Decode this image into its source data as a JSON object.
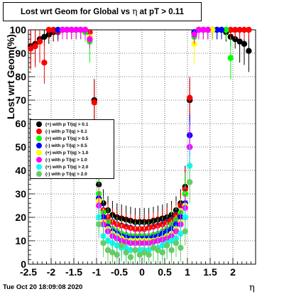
{
  "title": {
    "prefix": "Lost wrt Geom for Global vs",
    "eta": "η",
    "suffix": " at pT > 0.11"
  },
  "date_stamp": "Tue Oct 20 18:09:08 2020",
  "chart_data": {
    "type": "scatter",
    "xlabel": "η",
    "ylabel": "Lost wrt Geom(%)",
    "xlim": [
      -2.5,
      2.5
    ],
    "ylim": [
      0,
      100
    ],
    "x_ticks": [
      "-2.5",
      "-2",
      "-1.5",
      "-1",
      "-0.5",
      "0",
      "0.5",
      "1",
      "1.5",
      "2"
    ],
    "y_ticks": [
      "0",
      "10",
      "20",
      "30",
      "40",
      "50",
      "60",
      "70",
      "80",
      "90",
      "100"
    ],
    "grid": true,
    "legend_position": "middle-left",
    "series": [
      {
        "name": "(+) with p T/|q| > 0.1",
        "color": "#000000",
        "x": [
          -2.45,
          -2.35,
          -2.25,
          -2.15,
          -2.05,
          -1.95,
          -1.85,
          -1.75,
          -1.65,
          -1.55,
          -1.45,
          -1.35,
          -1.25,
          -1.15,
          -1.05,
          -0.95,
          -0.85,
          -0.75,
          -0.65,
          -0.55,
          -0.45,
          -0.35,
          -0.25,
          -0.15,
          -0.05,
          0.05,
          0.15,
          0.25,
          0.35,
          0.45,
          0.55,
          0.65,
          0.75,
          0.85,
          0.95,
          1.05,
          1.15,
          1.25,
          1.35,
          1.45,
          1.55,
          1.65,
          1.75,
          1.85,
          1.95,
          2.05,
          2.15,
          2.25,
          2.35
        ],
        "y": [
          93,
          94,
          96,
          97,
          98,
          99,
          99.5,
          100,
          100,
          100,
          100,
          100,
          100,
          99,
          70,
          34,
          26,
          23,
          21,
          20,
          19.5,
          19,
          18.5,
          18,
          18,
          18,
          18,
          18.5,
          19,
          19.5,
          20,
          21,
          23,
          26,
          33,
          70,
          99,
          100,
          100,
          100,
          100,
          100,
          100,
          99,
          97,
          96,
          95,
          94,
          91
        ]
      },
      {
        "name": "(-) with p T/|q| > 0.1",
        "color": "#ff0000",
        "x": [
          -2.45,
          -2.35,
          -2.25,
          -2.15,
          -2.05,
          -1.95,
          -1.85,
          -1.75,
          -1.65,
          -1.55,
          -1.45,
          -1.35,
          -1.25,
          -1.15,
          -1.05,
          -0.95,
          -0.85,
          -0.75,
          -0.65,
          -0.55,
          -0.45,
          -0.35,
          -0.25,
          -0.15,
          -0.05,
          0.05,
          0.15,
          0.25,
          0.35,
          0.45,
          0.55,
          0.65,
          0.75,
          0.85,
          0.95,
          1.05,
          1.15,
          1.25,
          1.35,
          1.45,
          1.55,
          1.65,
          1.75,
          1.85,
          1.95,
          2.05,
          2.15,
          2.25,
          2.35
        ],
        "y": [
          92,
          93,
          95,
          86,
          100,
          100,
          99,
          100,
          100,
          100,
          100,
          100,
          100,
          99,
          69,
          28,
          23,
          20,
          18,
          17,
          16.5,
          16,
          15.5,
          15,
          15,
          15,
          15.5,
          16,
          16.5,
          17,
          18,
          19,
          21,
          25,
          32,
          71,
          99,
          100,
          100,
          100,
          100,
          100,
          100,
          100,
          100,
          100,
          100,
          100,
          100
        ]
      },
      {
        "name": "(+) with p T/|q| > 0.5",
        "color": "#00ff00",
        "x": [
          -1.85,
          -1.75,
          -1.65,
          -1.55,
          -1.45,
          -1.35,
          -1.25,
          -1.15,
          -0.95,
          -0.85,
          -0.75,
          -0.65,
          -0.55,
          -0.45,
          -0.35,
          -0.25,
          -0.15,
          -0.05,
          0.05,
          0.15,
          0.25,
          0.35,
          0.45,
          0.55,
          0.65,
          0.75,
          0.85,
          0.95,
          1.15,
          1.25,
          1.35,
          1.45,
          1.55,
          1.65,
          1.75,
          1.85,
          1.95
        ],
        "y": [
          100,
          100,
          100,
          100,
          100,
          100,
          99,
          95,
          30,
          22,
          18,
          15,
          14,
          13,
          12.5,
          12,
          12,
          12,
          12,
          12,
          12.5,
          13,
          14,
          15,
          17,
          19,
          22,
          30,
          97,
          100,
          100,
          100,
          100,
          100,
          100,
          100,
          88
        ]
      },
      {
        "name": "(-) with p T/|q| > 0.5",
        "color": "#0000ff",
        "x": [
          -1.85,
          -1.75,
          -1.65,
          -1.55,
          -1.45,
          -1.35,
          -1.25,
          -1.15,
          -0.95,
          -0.85,
          -0.75,
          -0.65,
          -0.55,
          -0.45,
          -0.35,
          -0.25,
          -0.15,
          -0.05,
          0.05,
          0.15,
          0.25,
          0.35,
          0.45,
          0.55,
          0.65,
          0.75,
          0.85,
          0.95,
          1.05,
          1.15,
          1.25,
          1.35,
          1.45,
          1.55,
          1.65,
          1.75
        ],
        "y": [
          100,
          100,
          100,
          100,
          100,
          100,
          100,
          97,
          28,
          20,
          16,
          14,
          13,
          12,
          11.5,
          11,
          11,
          11,
          11,
          11,
          11.5,
          12,
          13,
          14,
          15,
          17,
          20,
          26,
          55,
          99,
          100,
          100,
          100,
          100,
          100,
          100
        ]
      },
      {
        "name": "(+) with p T/|q| > 1.0",
        "color": "#ffff00",
        "x": [
          -1.75,
          -1.65,
          -1.55,
          -1.45,
          -1.35,
          -1.25,
          -1.15,
          -0.95,
          -0.85,
          -0.75,
          -0.65,
          -0.55,
          -0.45,
          -0.35,
          -0.25,
          -0.15,
          -0.05,
          0.05,
          0.15,
          0.25,
          0.35,
          0.45,
          0.55,
          0.65,
          0.75,
          0.85,
          0.95,
          1.15,
          1.25,
          1.35,
          1.45,
          1.55
        ],
        "y": [
          100,
          100,
          100,
          100,
          100,
          100,
          97,
          27,
          18,
          15,
          13,
          12,
          11,
          10,
          10,
          10,
          10,
          10,
          10,
          10,
          10.5,
          11,
          12,
          13,
          15,
          18,
          25,
          94,
          100,
          100,
          100,
          100
        ]
      },
      {
        "name": "(-) with p T/|q| > 1.0",
        "color": "#ff00ff",
        "x": [
          -1.75,
          -1.65,
          -1.55,
          -1.45,
          -1.35,
          -1.25,
          -1.15,
          -0.95,
          -0.85,
          -0.75,
          -0.65,
          -0.55,
          -0.45,
          -0.35,
          -0.25,
          -0.15,
          -0.05,
          0.05,
          0.15,
          0.25,
          0.35,
          0.45,
          0.55,
          0.65,
          0.75,
          0.85,
          0.95,
          1.05,
          1.15,
          1.25,
          1.35,
          1.45
        ],
        "y": [
          100,
          100,
          100,
          100,
          100,
          100,
          96,
          25,
          17,
          14,
          12,
          11,
          10,
          9.5,
          9,
          9,
          9,
          9,
          9,
          9.5,
          10,
          10.5,
          11,
          12,
          14,
          17,
          24,
          50,
          98,
          100,
          100,
          100
        ]
      },
      {
        "name": "(+) with p T/|q| > 2.0",
        "color": "#00ffff",
        "x": [
          -0.95,
          -0.85,
          -0.75,
          -0.65,
          -0.55,
          -0.45,
          -0.35,
          -0.25,
          -0.15,
          -0.05,
          0.05,
          0.15,
          0.25,
          0.35,
          0.45,
          0.55,
          0.65,
          0.75,
          0.85,
          0.95,
          1.05
        ],
        "y": [
          20,
          12,
          10,
          9,
          8,
          7,
          7,
          6,
          6,
          6,
          6,
          6,
          7,
          7,
          8,
          9,
          10,
          11,
          13,
          20,
          42
        ]
      },
      {
        "name": "(-) with p T/|q| > 2.0",
        "color": "#66cc66",
        "x": [
          -0.95,
          -0.85,
          -0.75,
          -0.65,
          -0.55,
          -0.45,
          -0.35,
          -0.25,
          -0.15,
          -0.05,
          0.05,
          0.15,
          0.25,
          0.35,
          0.45,
          0.55,
          0.65,
          0.75,
          0.85,
          0.95,
          1.05
        ],
        "y": [
          17,
          9,
          6,
          5,
          4,
          8,
          5,
          3,
          6,
          4,
          5,
          4,
          7,
          6,
          5,
          8,
          6,
          9,
          7,
          14,
          35
        ]
      }
    ]
  }
}
